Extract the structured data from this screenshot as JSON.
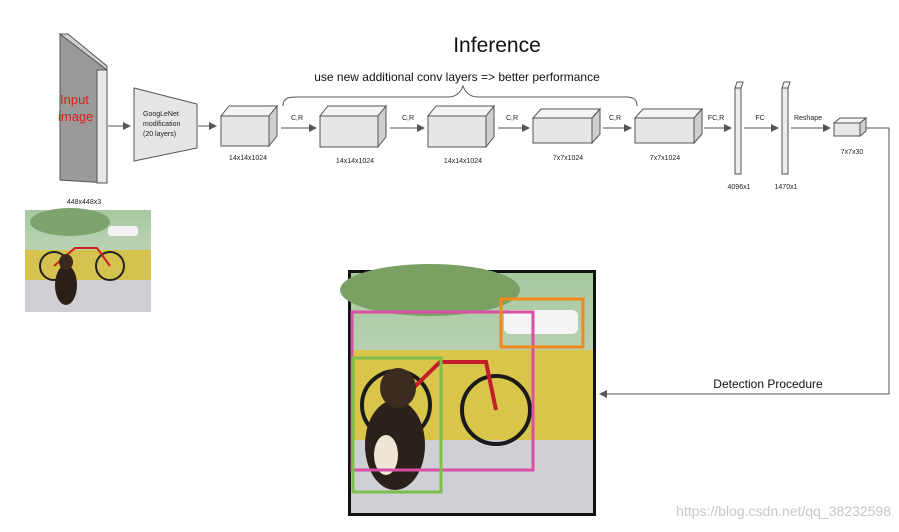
{
  "title": "Inference",
  "brace_caption": "use new additional conv layers => better performance",
  "input": {
    "text": "Input image",
    "dims": "448x448x3"
  },
  "googlenet": {
    "line1": "GoogLeNet",
    "line2": "modification",
    "line3": "(20 layers)"
  },
  "blocks": [
    {
      "dims": "14x14x1024"
    },
    {
      "dims": "14x14x1024"
    },
    {
      "dims": "14x14x1024"
    },
    {
      "dims": "7x7x1024"
    },
    {
      "dims": "7x7x1024"
    }
  ],
  "ops": [
    "C,R",
    "C,R",
    "C,R",
    "C,R",
    "FC,R",
    "FC",
    "Reshape"
  ],
  "fc_layers": [
    {
      "dims": "4096x1"
    },
    {
      "dims": "1470x1"
    }
  ],
  "output": {
    "dims": "7x7x30"
  },
  "detection_label": "Detection Procedure",
  "watermark": "https://blog.csdn.net/qq_38232598",
  "colors": {
    "input_label": "#e11d1d",
    "box_pink": "#d94fa6",
    "box_green": "#7cc04b",
    "box_orange": "#f08a1c"
  }
}
